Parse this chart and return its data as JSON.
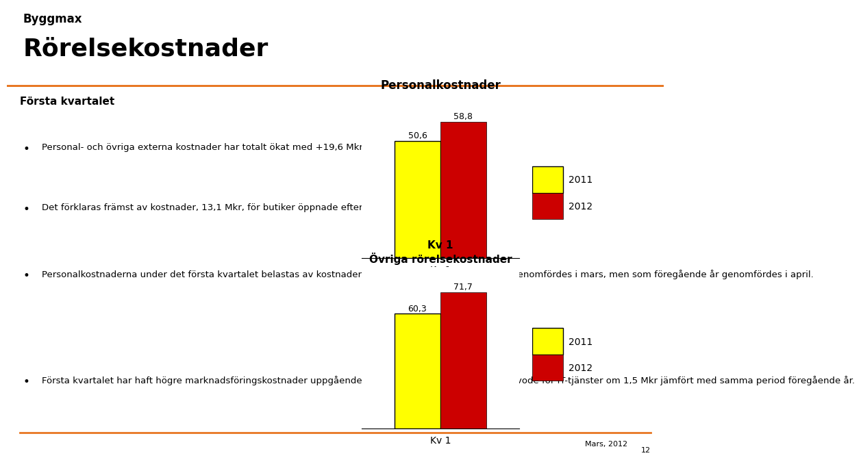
{
  "title_company": "Byggmax",
  "title_main": "Rörelsekostnader",
  "header_bg": "#FFFF00",
  "header_border": "#E87722",
  "left_heading": "Första kvartalet",
  "bullet_points": [
    "Personal- och övriga externa kostnader har totalt ökat med +19,6 Mkr.",
    "Det förklaras främst av kostnader, 13,1 Mkr, för butiker öppnade efter första kvartalet 2011.",
    "Personalkostnaderna under det första kvartalet belastas av kostnader för den personalmässa som i år genomfördes i mars, men som föregående år genomfördes i april.",
    "Första kvartalet har haft högre marknadsföringskostnader uppgående till 2,8 Mkr, samt högre konsultarvode för IT-tjänster om 1,5 Mkr jämfört med samma period föregående år."
  ],
  "chart1_title": "Personalkostnader",
  "chart1_xlabel": "Kv 1",
  "chart1_val_2011": 50.6,
  "chart1_val_2012": 58.8,
  "chart1_ylim": 70,
  "chart2_title": "Övriga rörelsekostnader",
  "chart2_xlabel": "Kv 1",
  "chart2_val_2011": 60.3,
  "chart2_val_2012": 71.7,
  "chart2_ylim": 85,
  "color_2011": "#FFFF00",
  "color_2012": "#CC0000",
  "bar_edge_color": "#000000",
  "legend_2011": "2011",
  "legend_2012": "2012",
  "footer_text": "Mars, 2012",
  "footer_page": "12",
  "footer_line_color": "#E87722",
  "bg_color": "#FFFFFF",
  "text_color": "#000000"
}
